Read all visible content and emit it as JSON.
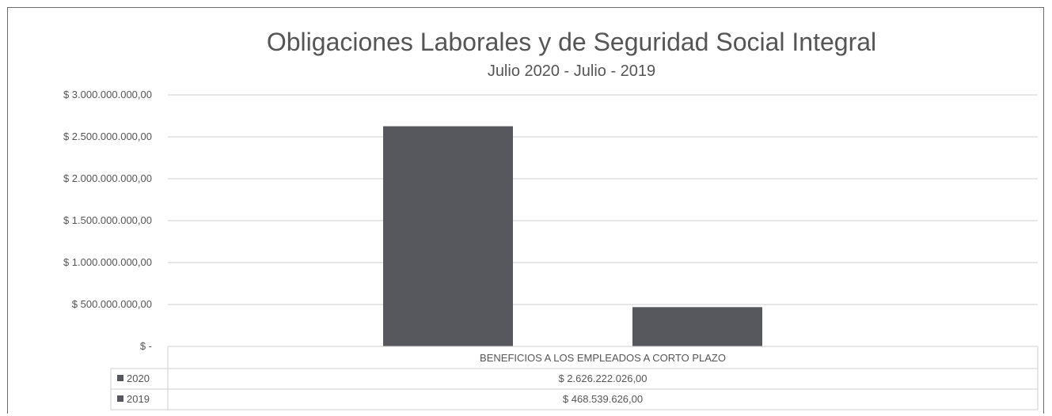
{
  "chart_data": {
    "type": "bar",
    "title": "Obligaciones Laborales y de Seguridad Social Integral",
    "subtitle": "Julio 2020 - Julio - 2019",
    "categories": [
      "BENEFICIOS A LOS EMPLEADOS A CORTO PLAZO"
    ],
    "series": [
      {
        "name": "2020",
        "values": [
          2626222026.0
        ],
        "label": "$ 2.626.222.026,00",
        "color": "#57575e"
      },
      {
        "name": "2019",
        "values": [
          468539626.0
        ],
        "label": "$ 468.539.626,00",
        "color": "#57575e"
      }
    ],
    "ylim": [
      0,
      3000000000
    ],
    "yticks": [
      0,
      500000000,
      1000000000,
      1500000000,
      2000000000,
      2500000000,
      3000000000
    ],
    "ytick_labels": [
      "$ -",
      "$ 500.000.000,00",
      "$ 1.000.000.000,00",
      "$ 1.500.000.000,00",
      "$ 2.000.000.000,00",
      "$ 2.500.000.000,00",
      "$ 3.000.000.000,00"
    ],
    "grid": true,
    "legend": "data-table",
    "xlabel": "",
    "ylabel": ""
  }
}
